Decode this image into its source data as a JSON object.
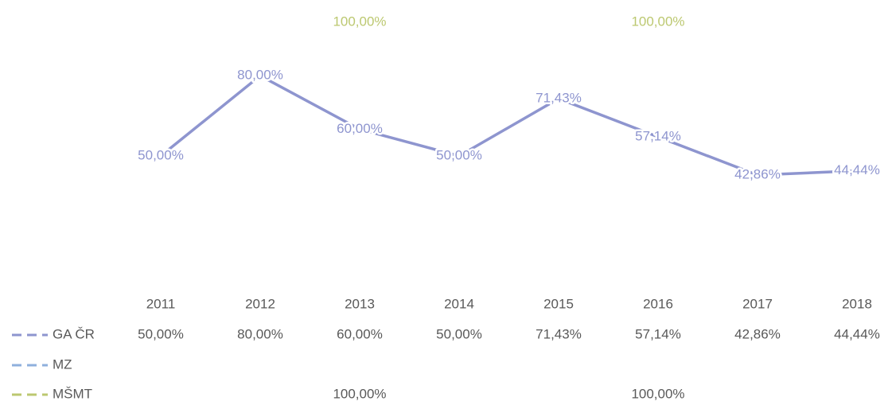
{
  "chart_data": {
    "type": "line",
    "categories": [
      "2011",
      "2012",
      "2013",
      "2014",
      "2015",
      "2016",
      "2017",
      "2018"
    ],
    "series": [
      {
        "name": "GA ČR",
        "color": "#8e95cf",
        "values": [
          50,
          80,
          60,
          50,
          71.43,
          57.14,
          42.86,
          44.44
        ],
        "value_labels": [
          "50,00%",
          "80,00%",
          "60,00%",
          "50,00%",
          "71,43%",
          "57,14%",
          "42,86%",
          "44,44%"
        ]
      },
      {
        "name": "MZ",
        "color": "#8fb0dd",
        "values": [
          null,
          null,
          null,
          null,
          null,
          null,
          null,
          null
        ],
        "value_labels": [
          null,
          null,
          null,
          null,
          null,
          null,
          null,
          null
        ]
      },
      {
        "name": "MŠMT",
        "color": "#bcc870",
        "values": [
          null,
          null,
          100,
          null,
          null,
          100,
          null,
          null
        ],
        "value_labels": [
          null,
          null,
          "100,00%",
          null,
          null,
          "100,00%",
          null,
          null
        ]
      }
    ],
    "ylim": [
      0,
      100
    ]
  }
}
